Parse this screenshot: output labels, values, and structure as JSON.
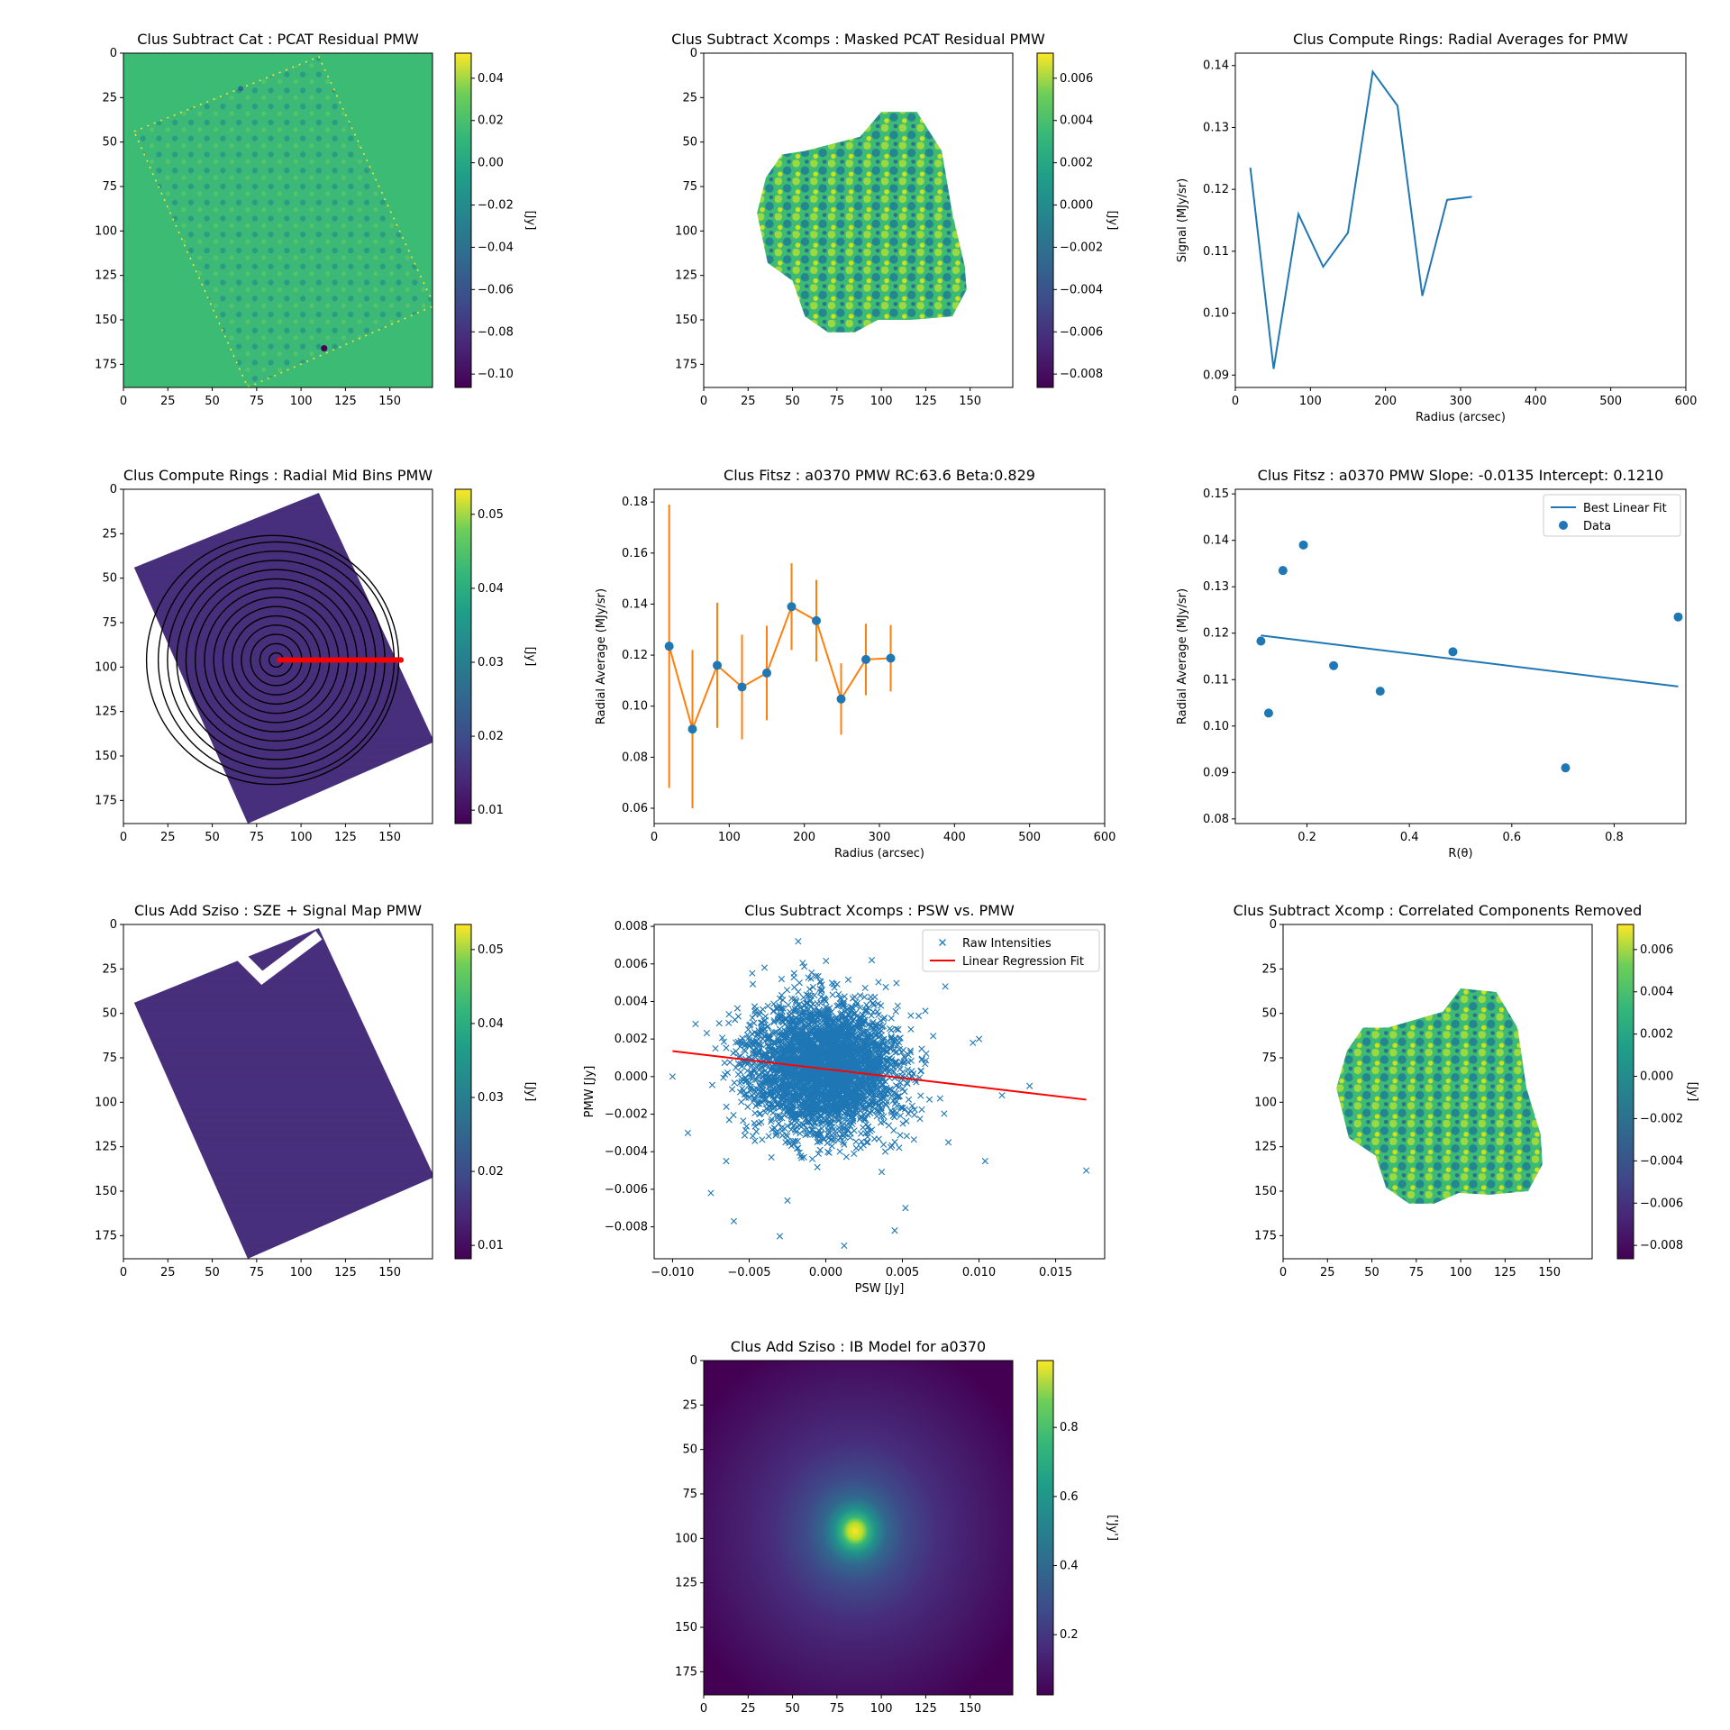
{
  "colors": {
    "series": "#1f77b4",
    "errorbar": "#ff7f0e",
    "fitline": "#ff0000",
    "marker_ring": "#ff0000",
    "viridis_dark": "#440154",
    "viridis_mid": "#21918c",
    "viridis_green": "#3cbb75",
    "viridis_yellow": "#fde725"
  },
  "chart_data": [
    {
      "id": "p1",
      "type": "heatmap",
      "title": "Clus Subtract Cat : PCAT Residual PMW",
      "xticks": [
        0,
        25,
        50,
        75,
        100,
        125,
        150
      ],
      "yticks": [
        0,
        25,
        50,
        75,
        100,
        125,
        150,
        175
      ],
      "xlim": [
        0,
        174
      ],
      "ylim": [
        188,
        0
      ],
      "colorbar": {
        "label": "[Jy]",
        "ticks": [
          "0.04",
          "0.02",
          "0.00",
          "−0.02",
          "−0.04",
          "−0.06",
          "−0.08",
          "−0.10"
        ]
      }
    },
    {
      "id": "p2",
      "type": "heatmap",
      "title": "Clus Subtract Xcomps : Masked PCAT Residual PMW",
      "xticks": [
        0,
        25,
        50,
        75,
        100,
        125,
        150
      ],
      "yticks": [
        0,
        25,
        50,
        75,
        100,
        125,
        150,
        175
      ],
      "xlim": [
        0,
        174
      ],
      "ylim": [
        188,
        0
      ],
      "colorbar": {
        "label": "[Jy]",
        "ticks": [
          "0.006",
          "0.004",
          "0.002",
          "0.000",
          "−0.002",
          "−0.004",
          "−0.006",
          "−0.008"
        ]
      }
    },
    {
      "id": "p3",
      "type": "line",
      "title": "Clus Compute Rings: Radial Averages for PMW",
      "xlabel": "Radius (arcsec)",
      "ylabel": "Signal (MJy/sr)",
      "xlim": [
        0,
        600
      ],
      "ylim": [
        0.088,
        0.142
      ],
      "xticks": [
        0,
        100,
        200,
        300,
        400,
        500,
        600
      ],
      "yticks": [
        "0.09",
        "0.10",
        "0.11",
        "0.12",
        "0.13",
        "0.14"
      ],
      "x": [
        20,
        51,
        84,
        117,
        150,
        183,
        216,
        249,
        282,
        315
      ],
      "y": [
        0.1235,
        0.091,
        0.116,
        0.1075,
        0.113,
        0.139,
        0.1335,
        0.1028,
        0.1183,
        0.1188
      ]
    },
    {
      "id": "p4",
      "type": "heatmap",
      "title": "Clus Compute Rings : Radial Mid Bins PMW",
      "xticks": [
        0,
        25,
        50,
        75,
        100,
        125,
        150
      ],
      "yticks": [
        0,
        25,
        50,
        75,
        100,
        125,
        150,
        175
      ],
      "xlim": [
        0,
        174
      ],
      "ylim": [
        188,
        0
      ],
      "colorbar": {
        "label": "[Jy]",
        "ticks": [
          "0.05",
          "0.04",
          "0.03",
          "0.02",
          "0.01"
        ]
      }
    },
    {
      "id": "p5",
      "type": "line",
      "title": "Clus Fitsz : a0370  PMW  RC:63.6  Beta:0.829",
      "xlabel": "Radius (arcsec)",
      "ylabel": "Radial Average (MJy/sr)",
      "xlim": [
        0,
        600
      ],
      "ylim": [
        0.054,
        0.185
      ],
      "xticks": [
        0,
        100,
        200,
        300,
        400,
        500,
        600
      ],
      "yticks": [
        "0.06",
        "0.08",
        "0.10",
        "0.12",
        "0.14",
        "0.16",
        "0.18"
      ],
      "x": [
        20,
        51,
        84,
        117,
        150,
        183,
        216,
        249,
        282,
        315
      ],
      "y": [
        0.1235,
        0.091,
        0.116,
        0.1075,
        0.113,
        0.139,
        0.1335,
        0.1028,
        0.1183,
        0.1188
      ],
      "yerr": [
        0.0555,
        0.031,
        0.0245,
        0.0205,
        0.0185,
        0.017,
        0.016,
        0.014,
        0.014,
        0.013
      ]
    },
    {
      "id": "p6",
      "type": "scatter",
      "title": "Clus Fitsz : a0370  PMW  Slope: -0.0135  Intercept: 0.1210",
      "xlabel": "R(θ)",
      "ylabel": "Radial Average (MJy/sr)",
      "xlim": [
        0.06,
        0.94
      ],
      "ylim": [
        0.079,
        0.151
      ],
      "xticks": [
        "0.2",
        "0.4",
        "0.6",
        "0.8"
      ],
      "xtick_values": [
        0.2,
        0.4,
        0.6,
        0.8
      ],
      "yticks": [
        "0.08",
        "0.09",
        "0.10",
        "0.11",
        "0.12",
        "0.13",
        "0.14",
        "0.15"
      ],
      "x": [
        0.925,
        0.705,
        0.485,
        0.343,
        0.252,
        0.193,
        0.153,
        0.125,
        0.11
      ],
      "y": [
        0.1235,
        0.091,
        0.116,
        0.1075,
        0.113,
        0.139,
        0.1335,
        0.1028,
        0.1183
      ],
      "fit": {
        "slope": -0.0135,
        "intercept": 0.121,
        "x_range": [
          0.11,
          0.925
        ]
      },
      "legend": [
        "Best Linear Fit",
        "Data"
      ]
    },
    {
      "id": "p7",
      "type": "heatmap",
      "title": "Clus Add Sziso : SZE + Signal Map PMW",
      "xticks": [
        0,
        25,
        50,
        75,
        100,
        125,
        150
      ],
      "yticks": [
        0,
        25,
        50,
        75,
        100,
        125,
        150,
        175
      ],
      "xlim": [
        0,
        174
      ],
      "ylim": [
        188,
        0
      ],
      "colorbar": {
        "label": "[Jy]",
        "ticks": [
          "0.05",
          "0.04",
          "0.03",
          "0.02",
          "0.01"
        ]
      }
    },
    {
      "id": "p8",
      "type": "scatter",
      "title": "Clus Subtract Xcomps : PSW vs. PMW",
      "xlabel": "PSW [Jy]",
      "ylabel": "PMW [Jy]",
      "xlim": [
        -0.0112,
        0.0182
      ],
      "ylim": [
        -0.0097,
        0.0081
      ],
      "xticks": [
        "−0.010",
        "−0.005",
        "0.000",
        "0.005",
        "0.010",
        "0.015"
      ],
      "xtick_values": [
        -0.01,
        -0.005,
        0.0,
        0.005,
        0.01,
        0.015
      ],
      "yticks": [
        "0.008",
        "0.006",
        "0.004",
        "0.002",
        "0.000",
        "−0.002",
        "−0.004",
        "−0.006",
        "−0.008"
      ],
      "ytick_values": [
        0.008,
        0.006,
        0.004,
        0.002,
        0.0,
        -0.002,
        -0.004,
        -0.006,
        -0.008
      ],
      "x": [
        -0.01,
        -0.0075,
        -0.0072,
        -0.0048,
        -0.0065,
        -0.003,
        -0.0018,
        0.0012,
        0.0052,
        0.0078,
        0.0096,
        0.0104,
        0.0115,
        0.0133,
        0.017,
        -0.009,
        -0.0085,
        -0.004,
        0.003,
        0.008,
        -0.006,
        0.0,
        0.0065,
        0.01,
        -0.0025,
        0.0045
      ],
      "y": [
        0.0,
        -0.0062,
        0.0015,
        0.0055,
        -0.0045,
        -0.0085,
        0.0072,
        -0.009,
        -0.007,
        0.0048,
        0.0018,
        -0.0045,
        -0.001,
        -0.0005,
        -0.005,
        -0.003,
        0.0028,
        0.0058,
        0.0062,
        -0.0035,
        -0.0077,
        0.004,
        0.0035,
        0.002,
        -0.0066,
        -0.0082
      ],
      "cloud": {
        "center_x": 0.0,
        "center_y": 0.0005,
        "sd_x": 0.0035,
        "sd_y": 0.0022,
        "count": 3600
      },
      "fit": {
        "slope": -0.0958,
        "intercept": 0.0004,
        "x_range": [
          -0.01,
          0.017
        ]
      },
      "legend": [
        "Raw Intensities",
        "Linear Regression Fit"
      ]
    },
    {
      "id": "p9",
      "type": "heatmap",
      "title": "Clus Subtract Xcomp : Correlated Components Removed",
      "xticks": [
        0,
        25,
        50,
        75,
        100,
        125,
        150
      ],
      "yticks": [
        0,
        25,
        50,
        75,
        100,
        125,
        150,
        175
      ],
      "xlim": [
        0,
        174
      ],
      "ylim": [
        188,
        0
      ],
      "colorbar": {
        "label": "[Jy]",
        "ticks": [
          "0.006",
          "0.004",
          "0.002",
          "0.000",
          "−0.002",
          "−0.004",
          "−0.006",
          "−0.008"
        ]
      }
    },
    {
      "id": "p10",
      "type": "heatmap",
      "title": "Clus Add Sziso : IB Model for a0370",
      "xticks": [
        0,
        25,
        50,
        75,
        100,
        125,
        150
      ],
      "yticks": [
        0,
        25,
        50,
        75,
        100,
        125,
        150,
        175
      ],
      "xlim": [
        0,
        174
      ],
      "ylim": [
        188,
        0
      ],
      "colorbar": {
        "label": "['Jy']",
        "ticks": [
          "0.8",
          "0.6",
          "0.4",
          "0.2"
        ]
      }
    }
  ]
}
